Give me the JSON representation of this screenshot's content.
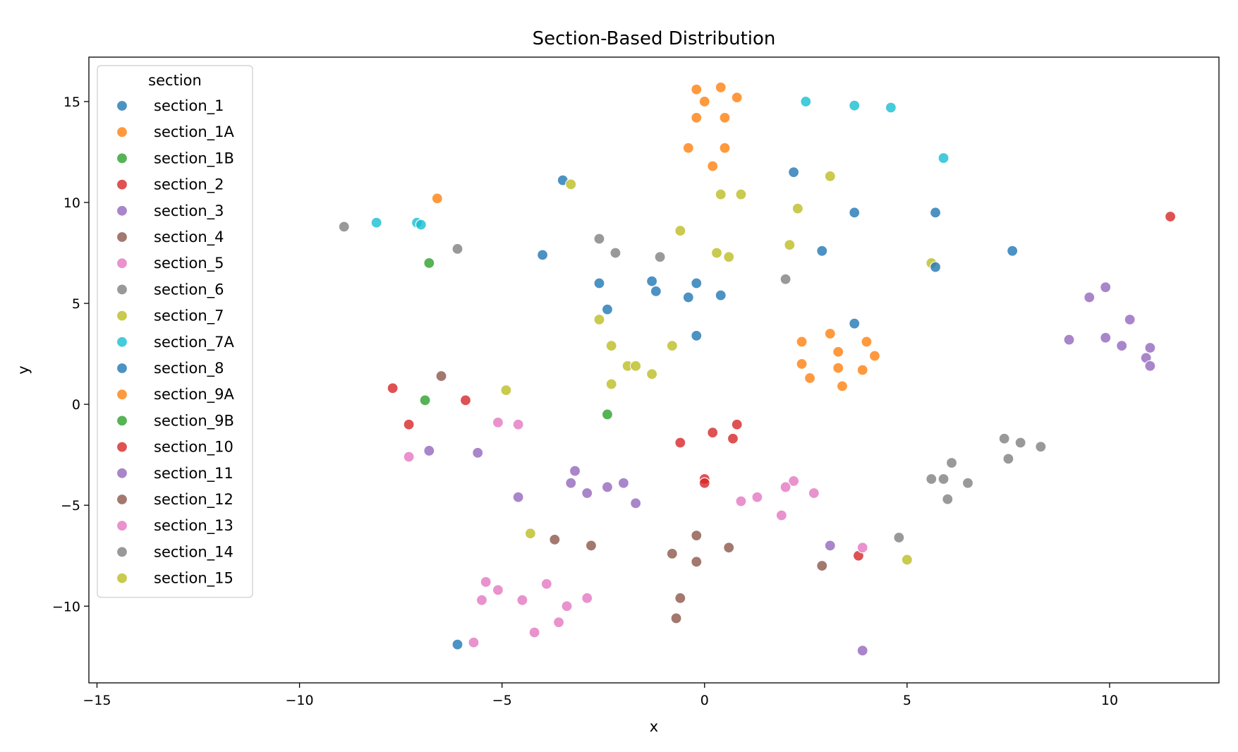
{
  "chart_data": {
    "type": "scatter",
    "title": "Section-Based Distribution",
    "xlabel": "x",
    "ylabel": "y",
    "xlim": [
      -15.2,
      12.7
    ],
    "ylim": [
      -13.8,
      17.2
    ],
    "xticks": [
      -15,
      -10,
      -5,
      0,
      5,
      10
    ],
    "yticks": [
      -10,
      -5,
      0,
      5,
      10,
      15
    ],
    "xtick_labels": [
      "−15",
      "−10",
      "−5",
      "0",
      "5",
      "10"
    ],
    "ytick_labels": [
      "−10",
      "−5",
      "0",
      "5",
      "10",
      "15"
    ],
    "grid": false,
    "legend": {
      "title": "section",
      "position": "upper-left"
    },
    "series": [
      {
        "name": "section_1",
        "color": "#1f77b4",
        "points": [
          [
            -3.5,
            11.1
          ],
          [
            2.2,
            11.5
          ],
          [
            3.7,
            9.5
          ],
          [
            5.7,
            9.5
          ],
          [
            -4.0,
            7.4
          ],
          [
            2.9,
            7.6
          ],
          [
            -1.2,
            5.6
          ],
          [
            0.4,
            5.4
          ]
        ]
      },
      {
        "name": "section_1A",
        "color": "#ff7f0e",
        "points": [
          [
            -0.2,
            15.6
          ],
          [
            0.4,
            15.7
          ],
          [
            0.0,
            15.0
          ],
          [
            0.8,
            15.2
          ],
          [
            -0.2,
            14.2
          ],
          [
            0.5,
            14.2
          ],
          [
            -0.4,
            12.7
          ],
          [
            0.5,
            12.7
          ],
          [
            0.2,
            11.8
          ],
          [
            -6.6,
            10.2
          ]
        ]
      },
      {
        "name": "section_1B",
        "color": "#2ca02c",
        "points": [
          [
            -6.8,
            7.0
          ],
          [
            -6.9,
            0.2
          ]
        ]
      },
      {
        "name": "section_2",
        "color": "#d62728",
        "points": [
          [
            11.5,
            9.3
          ]
        ]
      },
      {
        "name": "section_3",
        "color": "#9467bd",
        "points": [
          [
            9.5,
            5.3
          ],
          [
            9.9,
            5.8
          ],
          [
            10.5,
            4.2
          ],
          [
            9.0,
            3.2
          ],
          [
            9.9,
            3.3
          ],
          [
            10.3,
            2.9
          ],
          [
            11.0,
            2.8
          ],
          [
            10.9,
            2.3
          ],
          [
            11.0,
            1.9
          ]
        ]
      },
      {
        "name": "section_4",
        "color": "#8c564b",
        "points": [
          [
            -6.5,
            1.4
          ]
        ]
      },
      {
        "name": "section_5",
        "color": "#e377c2",
        "points": [
          [
            -7.3,
            -2.6
          ],
          [
            -5.1,
            -0.9
          ],
          [
            -4.6,
            -1.0
          ]
        ]
      },
      {
        "name": "section_6",
        "color": "#7f7f7f",
        "points": [
          [
            -8.9,
            8.8
          ],
          [
            -6.1,
            7.7
          ],
          [
            -2.6,
            8.2
          ],
          [
            -2.2,
            7.5
          ],
          [
            -1.1,
            7.3
          ],
          [
            2.0,
            6.2
          ]
        ]
      },
      {
        "name": "section_7",
        "color": "#bcbd22",
        "points": [
          [
            -3.3,
            10.9
          ],
          [
            0.4,
            10.4
          ],
          [
            0.9,
            10.4
          ],
          [
            3.1,
            11.3
          ],
          [
            2.3,
            9.7
          ],
          [
            -0.6,
            8.6
          ],
          [
            2.1,
            7.9
          ],
          [
            0.3,
            7.5
          ],
          [
            0.6,
            7.3
          ],
          [
            5.6,
            7.0
          ]
        ]
      },
      {
        "name": "section_7A",
        "color": "#17becf",
        "points": [
          [
            -8.1,
            9.0
          ],
          [
            -7.1,
            9.0
          ],
          [
            -7.0,
            8.9
          ],
          [
            2.5,
            15.0
          ],
          [
            3.7,
            14.8
          ],
          [
            4.6,
            14.7
          ],
          [
            5.9,
            12.2
          ]
        ]
      },
      {
        "name": "section_8",
        "color": "#1f77b4",
        "points": [
          [
            7.6,
            7.6
          ],
          [
            5.7,
            6.8
          ],
          [
            -2.6,
            6.0
          ],
          [
            -1.3,
            6.1
          ],
          [
            -0.2,
            6.0
          ],
          [
            -0.4,
            5.3
          ],
          [
            -2.4,
            4.7
          ],
          [
            3.7,
            4.0
          ],
          [
            -0.2,
            3.4
          ],
          [
            -6.1,
            -11.9
          ]
        ]
      },
      {
        "name": "section_9A",
        "color": "#ff7f0e",
        "points": [
          [
            3.1,
            3.5
          ],
          [
            2.4,
            3.1
          ],
          [
            3.3,
            2.6
          ],
          [
            4.0,
            3.1
          ],
          [
            4.2,
            2.4
          ],
          [
            2.4,
            2.0
          ],
          [
            3.3,
            1.8
          ],
          [
            3.9,
            1.7
          ],
          [
            2.6,
            1.3
          ],
          [
            3.4,
            0.9
          ]
        ]
      },
      {
        "name": "section_9B",
        "color": "#2ca02c",
        "points": [
          [
            -2.4,
            -0.5
          ]
        ]
      },
      {
        "name": "section_10",
        "color": "#d62728",
        "points": [
          [
            -7.7,
            0.8
          ],
          [
            -5.9,
            0.2
          ],
          [
            -7.3,
            -1.0
          ],
          [
            0.8,
            -1.0
          ],
          [
            0.2,
            -1.4
          ],
          [
            0.7,
            -1.7
          ],
          [
            -0.6,
            -1.9
          ],
          [
            0.0,
            -3.7
          ],
          [
            0.0,
            -3.9
          ],
          [
            3.8,
            -7.5
          ]
        ]
      },
      {
        "name": "section_11",
        "color": "#9467bd",
        "points": [
          [
            -6.8,
            -2.3
          ],
          [
            -5.6,
            -2.4
          ],
          [
            -3.2,
            -3.3
          ],
          [
            -3.3,
            -3.9
          ],
          [
            -2.0,
            -3.9
          ],
          [
            -2.9,
            -4.4
          ],
          [
            -2.4,
            -4.1
          ],
          [
            -1.7,
            -4.9
          ],
          [
            -4.6,
            -4.6
          ],
          [
            3.1,
            -7.0
          ],
          [
            3.9,
            -12.2
          ]
        ]
      },
      {
        "name": "section_12",
        "color": "#8c564b",
        "points": [
          [
            -3.7,
            -6.7
          ],
          [
            -2.8,
            -7.0
          ],
          [
            -0.2,
            -6.5
          ],
          [
            0.6,
            -7.1
          ],
          [
            -0.8,
            -7.4
          ],
          [
            -0.2,
            -7.8
          ],
          [
            2.9,
            -8.0
          ],
          [
            -0.6,
            -9.6
          ],
          [
            -0.7,
            -10.6
          ]
        ]
      },
      {
        "name": "section_13",
        "color": "#e377c2",
        "points": [
          [
            0.9,
            -4.8
          ],
          [
            1.3,
            -4.6
          ],
          [
            2.2,
            -3.8
          ],
          [
            2.0,
            -4.1
          ],
          [
            2.7,
            -4.4
          ],
          [
            1.9,
            -5.5
          ],
          [
            3.9,
            -7.1
          ],
          [
            -5.4,
            -8.8
          ],
          [
            -5.1,
            -9.2
          ],
          [
            -3.9,
            -8.9
          ],
          [
            -5.5,
            -9.7
          ],
          [
            -4.5,
            -9.7
          ],
          [
            -3.4,
            -10.0
          ],
          [
            -2.9,
            -9.6
          ],
          [
            -4.2,
            -11.3
          ],
          [
            -3.6,
            -10.8
          ],
          [
            -5.7,
            -11.8
          ]
        ]
      },
      {
        "name": "section_14",
        "color": "#7f7f7f",
        "points": [
          [
            7.4,
            -1.7
          ],
          [
            7.8,
            -1.9
          ],
          [
            8.3,
            -2.1
          ],
          [
            6.1,
            -2.9
          ],
          [
            7.5,
            -2.7
          ],
          [
            5.6,
            -3.7
          ],
          [
            5.9,
            -3.7
          ],
          [
            6.5,
            -3.9
          ],
          [
            6.0,
            -4.7
          ],
          [
            4.8,
            -6.6
          ]
        ]
      },
      {
        "name": "section_15",
        "color": "#bcbd22",
        "points": [
          [
            -2.6,
            4.2
          ],
          [
            -2.3,
            2.9
          ],
          [
            -0.8,
            2.9
          ],
          [
            -1.9,
            1.9
          ],
          [
            -1.7,
            1.9
          ],
          [
            -1.3,
            1.5
          ],
          [
            -2.3,
            1.0
          ],
          [
            -4.9,
            0.7
          ],
          [
            -4.3,
            -6.4
          ],
          [
            5.0,
            -7.7
          ]
        ]
      }
    ]
  }
}
